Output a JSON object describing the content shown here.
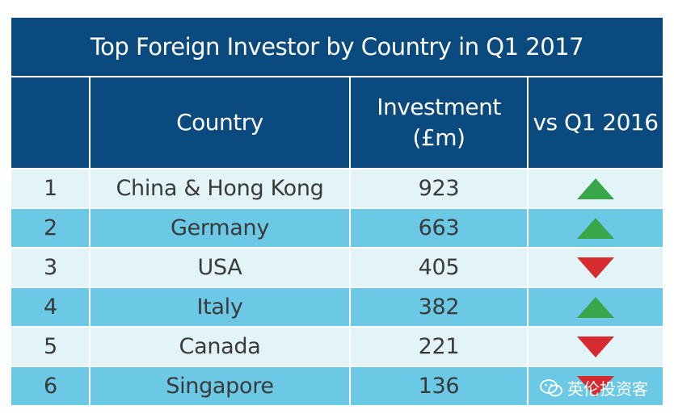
{
  "chart_data": {
    "type": "table",
    "title": "Top Foreign Investor by Country in Q1 2017",
    "columns": [
      "",
      "Country",
      "Investment (£m)",
      "vs Q1 2016"
    ],
    "headers": {
      "rank": "",
      "country": "Country",
      "investment_line1": "Investment",
      "investment_line2": "(£m)",
      "change": "vs Q1 2016"
    },
    "rows": [
      {
        "rank": "1",
        "country": "China & Hong Kong",
        "investment": "923",
        "change": "up"
      },
      {
        "rank": "2",
        "country": "Germany",
        "investment": "663",
        "change": "up"
      },
      {
        "rank": "3",
        "country": "USA",
        "investment": "405",
        "change": "down"
      },
      {
        "rank": "4",
        "country": "Italy",
        "investment": "382",
        "change": "up"
      },
      {
        "rank": "5",
        "country": "Canada",
        "investment": "221",
        "change": "down"
      },
      {
        "rank": "6",
        "country": "Singapore",
        "investment": "136",
        "change": "down"
      }
    ]
  },
  "colors": {
    "header_bg": "#0a4a7e",
    "row_light": "#e2f4f8",
    "row_dark": "#6bc9e6",
    "up": "#3aa64a",
    "down": "#d62b2f"
  },
  "watermark": {
    "text": "英伦投资客",
    "icon": "wechat-icon"
  }
}
